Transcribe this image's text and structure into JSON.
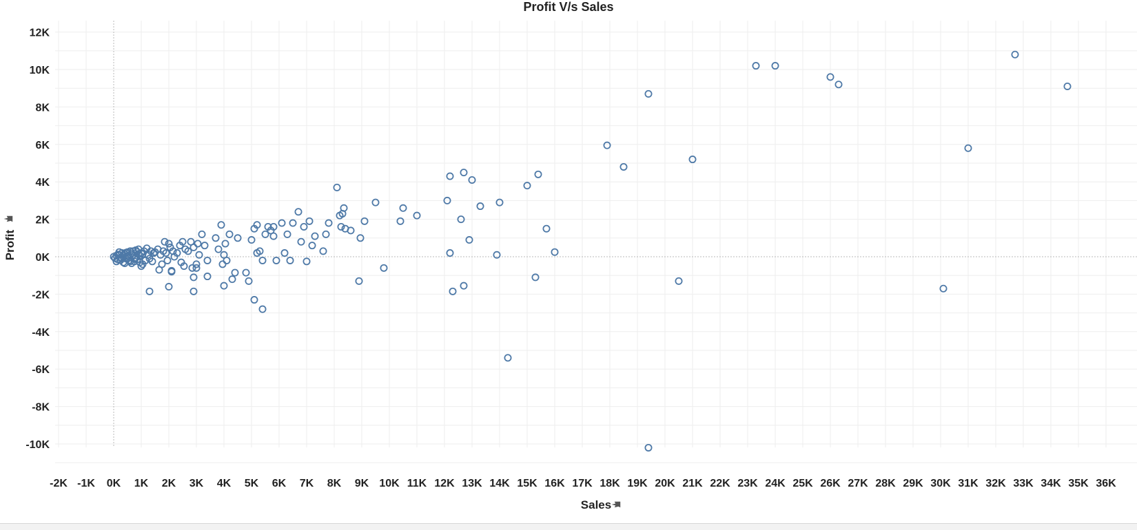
{
  "chart_data": {
    "type": "scatter",
    "title": "Profit V/s Sales",
    "xlabel": "Sales",
    "ylabel": "Profit",
    "xlim": [
      -2000,
      36000
    ],
    "ylim": [
      -11000,
      12500
    ],
    "x_ticks": [
      -2000,
      -1000,
      0,
      1000,
      2000,
      3000,
      4000,
      5000,
      6000,
      7000,
      8000,
      9000,
      10000,
      11000,
      12000,
      13000,
      14000,
      15000,
      16000,
      17000,
      18000,
      19000,
      20000,
      21000,
      22000,
      23000,
      24000,
      25000,
      26000,
      27000,
      28000,
      29000,
      30000,
      31000,
      32000,
      33000,
      34000,
      35000,
      36000
    ],
    "x_tick_labels": [
      "-2K",
      "-1K",
      "0K",
      "1K",
      "2K",
      "3K",
      "4K",
      "5K",
      "6K",
      "7K",
      "8K",
      "9K",
      "10K",
      "11K",
      "12K",
      "13K",
      "14K",
      "15K",
      "16K",
      "17K",
      "18K",
      "19K",
      "20K",
      "21K",
      "22K",
      "23K",
      "24K",
      "25K",
      "26K",
      "27K",
      "28K",
      "29K",
      "30K",
      "31K",
      "32K",
      "33K",
      "34K",
      "35K",
      "36K"
    ],
    "y_ticks": [
      -10000,
      -8000,
      -6000,
      -4000,
      -2000,
      0,
      2000,
      4000,
      6000,
      8000,
      10000,
      12000
    ],
    "y_tick_labels": [
      "-10K",
      "-8K",
      "-6K",
      "-4K",
      "-2K",
      "0K",
      "2K",
      "4K",
      "6K",
      "8K",
      "10K",
      "12K"
    ],
    "grid": true,
    "marker": "hollow-circle",
    "color": "#4e79a7",
    "points": [
      [
        0,
        0
      ],
      [
        50,
        -80
      ],
      [
        100,
        60
      ],
      [
        150,
        -150
      ],
      [
        200,
        100
      ],
      [
        250,
        -50
      ],
      [
        300,
        200
      ],
      [
        350,
        -300
      ],
      [
        400,
        150
      ],
      [
        450,
        -100
      ],
      [
        500,
        250
      ],
      [
        550,
        -200
      ],
      [
        600,
        300
      ],
      [
        650,
        -350
      ],
      [
        700,
        100
      ],
      [
        750,
        -250
      ],
      [
        800,
        350
      ],
      [
        850,
        -150
      ],
      [
        900,
        400
      ],
      [
        950,
        -300
      ],
      [
        1000,
        200
      ],
      [
        1050,
        -400
      ],
      [
        1100,
        300
      ],
      [
        1150,
        -200
      ],
      [
        1200,
        450
      ],
      [
        1250,
        100
      ],
      [
        1300,
        -100
      ],
      [
        1350,
        300
      ],
      [
        1400,
        -250
      ],
      [
        1450,
        200
      ],
      [
        100,
        -250
      ],
      [
        200,
        250
      ],
      [
        300,
        -100
      ],
      [
        400,
        -350
      ],
      [
        500,
        50
      ],
      [
        600,
        -250
      ],
      [
        700,
        300
      ],
      [
        800,
        -50
      ],
      [
        900,
        150
      ],
      [
        1000,
        -500
      ],
      [
        150,
        120
      ],
      [
        250,
        -180
      ],
      [
        350,
        80
      ],
      [
        450,
        220
      ],
      [
        550,
        30
      ],
      [
        650,
        180
      ],
      [
        750,
        -120
      ],
      [
        850,
        260
      ],
      [
        950,
        60
      ],
      [
        1050,
        140
      ],
      [
        1500,
        250
      ],
      [
        1600,
        400
      ],
      [
        1650,
        -700
      ],
      [
        1700,
        100
      ],
      [
        1750,
        -400
      ],
      [
        1800,
        300
      ],
      [
        1850,
        800
      ],
      [
        1900,
        200
      ],
      [
        1950,
        -200
      ],
      [
        2000,
        700
      ],
      [
        2050,
        500
      ],
      [
        2100,
        -800
      ],
      [
        2150,
        300
      ],
      [
        2200,
        0
      ],
      [
        2300,
        200
      ],
      [
        2400,
        600
      ],
      [
        2450,
        -300
      ],
      [
        2500,
        800
      ],
      [
        2550,
        -500
      ],
      [
        2600,
        400
      ],
      [
        2700,
        300
      ],
      [
        2800,
        800
      ],
      [
        2850,
        -600
      ],
      [
        2900,
        500
      ],
      [
        3000,
        -400
      ],
      [
        3050,
        700
      ],
      [
        3100,
        100
      ],
      [
        3200,
        1200
      ],
      [
        3300,
        600
      ],
      [
        3400,
        -200
      ],
      [
        2000,
        -1600
      ],
      [
        1300,
        -1850
      ],
      [
        2100,
        -750
      ],
      [
        2900,
        -1100
      ],
      [
        3400,
        -1050
      ],
      [
        2900,
        -1850
      ],
      [
        3000,
        -600
      ],
      [
        3700,
        1000
      ],
      [
        3800,
        400
      ],
      [
        3900,
        1700
      ],
      [
        3950,
        -400
      ],
      [
        4000,
        100
      ],
      [
        4050,
        700
      ],
      [
        4100,
        -200
      ],
      [
        4200,
        1200
      ],
      [
        4300,
        -1200
      ],
      [
        4400,
        -850
      ],
      [
        4500,
        1000
      ],
      [
        4000,
        -1550
      ],
      [
        4800,
        -850
      ],
      [
        4900,
        -1300
      ],
      [
        5000,
        900
      ],
      [
        5100,
        1500
      ],
      [
        5200,
        1700
      ],
      [
        5100,
        -2300
      ],
      [
        5400,
        -2800
      ],
      [
        5300,
        300
      ],
      [
        5200,
        200
      ],
      [
        5400,
        -200
      ],
      [
        5500,
        1200
      ],
      [
        5600,
        1600
      ],
      [
        5700,
        1400
      ],
      [
        5800,
        1600
      ],
      [
        5800,
        1100
      ],
      [
        5900,
        -200
      ],
      [
        6100,
        1800
      ],
      [
        6200,
        200
      ],
      [
        6300,
        1200
      ],
      [
        6400,
        -200
      ],
      [
        6500,
        1800
      ],
      [
        6700,
        2400
      ],
      [
        6800,
        800
      ],
      [
        6900,
        1600
      ],
      [
        7000,
        -250
      ],
      [
        7100,
        1900
      ],
      [
        7200,
        600
      ],
      [
        7300,
        1100
      ],
      [
        7600,
        300
      ],
      [
        7700,
        1200
      ],
      [
        7800,
        1800
      ],
      [
        8100,
        3700
      ],
      [
        8200,
        2200
      ],
      [
        8250,
        1600
      ],
      [
        8300,
        2300
      ],
      [
        8350,
        2600
      ],
      [
        8400,
        1500
      ],
      [
        8600,
        1400
      ],
      [
        8900,
        -1300
      ],
      [
        8950,
        1000
      ],
      [
        9100,
        1900
      ],
      [
        9500,
        2900
      ],
      [
        9800,
        -600
      ],
      [
        10400,
        1900
      ],
      [
        10500,
        2600
      ],
      [
        11000,
        2200
      ],
      [
        12100,
        3000
      ],
      [
        12200,
        4300
      ],
      [
        12200,
        200
      ],
      [
        12300,
        -1850
      ],
      [
        12600,
        2000
      ],
      [
        12700,
        4500
      ],
      [
        12700,
        -1550
      ],
      [
        12900,
        900
      ],
      [
        13000,
        4100
      ],
      [
        13300,
        2700
      ],
      [
        13900,
        100
      ],
      [
        14000,
        2900
      ],
      [
        14300,
        -5400
      ],
      [
        15000,
        3800
      ],
      [
        15300,
        -1100
      ],
      [
        15400,
        4400
      ],
      [
        15700,
        1500
      ],
      [
        16000,
        250
      ],
      [
        17900,
        5950
      ],
      [
        18500,
        4800
      ],
      [
        19400,
        8700
      ],
      [
        19400,
        -10200
      ],
      [
        20500,
        -1300
      ],
      [
        21000,
        5200
      ],
      [
        23300,
        10200
      ],
      [
        24000,
        10200
      ],
      [
        26000,
        9600
      ],
      [
        26300,
        9200
      ],
      [
        30100,
        -1700
      ],
      [
        31000,
        5800
      ],
      [
        32700,
        10800
      ],
      [
        34600,
        9100
      ]
    ]
  }
}
